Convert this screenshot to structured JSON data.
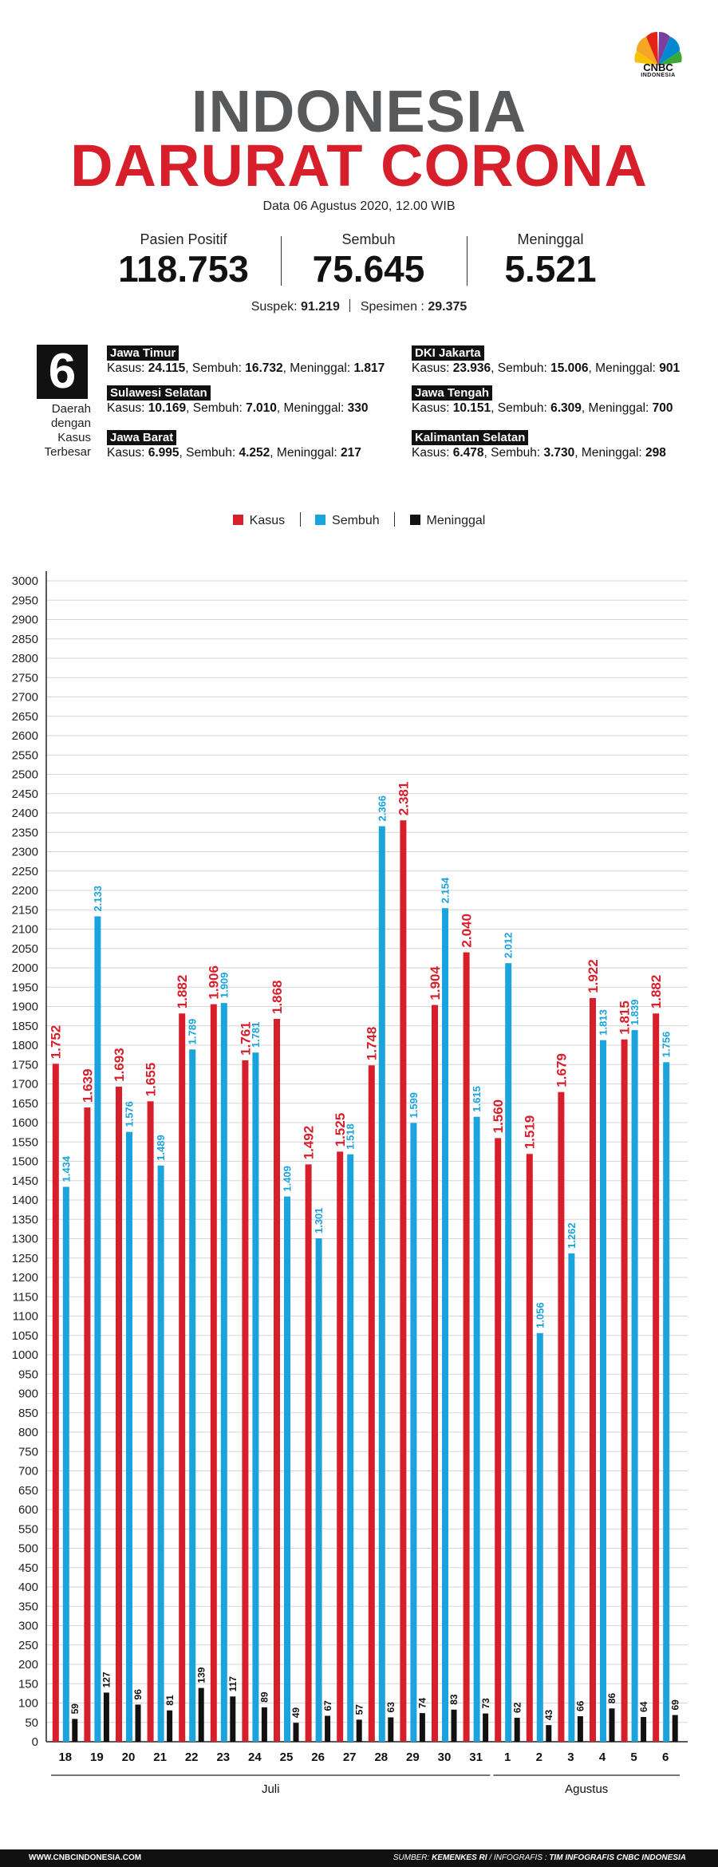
{
  "brand": {
    "name": "CNBC",
    "sub": "INDONESIA"
  },
  "title": {
    "line1": "INDONESIA",
    "line2": "DARURAT CORONA"
  },
  "date": "Data 06 Agustus 2020, 12.00 WIB",
  "stats": [
    {
      "label": "Pasien Positif",
      "value": "118.753"
    },
    {
      "label": "Sembuh",
      "value": "75.645"
    },
    {
      "label": "Meninggal",
      "value": "5.521"
    }
  ],
  "suspek": {
    "label": "Suspek:",
    "value": "91.219",
    "label2": "Spesimen :",
    "value2": "29.375"
  },
  "regions_header": {
    "number": "6",
    "caption": [
      "Daerah",
      "dengan",
      "Kasus",
      "Terbesar"
    ]
  },
  "regions": [
    {
      "name": "Jawa Timur",
      "kasus": "24.115",
      "sembuh": "16.732",
      "meninggal": "1.817"
    },
    {
      "name": "Sulawesi Selatan",
      "kasus": "10.169",
      "sembuh": "7.010",
      "meninggal": "330"
    },
    {
      "name": "Jawa Barat",
      "kasus": "6.995",
      "sembuh": "4.252",
      "meninggal": "217"
    },
    {
      "name": "DKI Jakarta",
      "kasus": "23.936",
      "sembuh": "15.006",
      "meninggal": "901"
    },
    {
      "name": "Jawa Tengah",
      "kasus": "10.151",
      "sembuh": "6.309",
      "meninggal": "700"
    },
    {
      "name": "Kalimantan Selatan",
      "kasus": "6.478",
      "sembuh": "3.730",
      "meninggal": "298"
    }
  ],
  "labels": {
    "kasus": "Kasus:",
    "sembuh": "Sembuh:",
    "meninggal": "Meninggal:"
  },
  "colors": {
    "kasus": "#d71f2b",
    "sembuh": "#1aa3dc",
    "meninggal": "#111111",
    "title_gray": "#58595b"
  },
  "chart_data": {
    "type": "bar",
    "categories": [
      "18",
      "19",
      "20",
      "21",
      "22",
      "23",
      "24",
      "25",
      "26",
      "27",
      "28",
      "29",
      "30",
      "31",
      "1",
      "2",
      "3",
      "4",
      "5",
      "6"
    ],
    "groups": [
      {
        "label": "Juli",
        "from": 0,
        "to": 13
      },
      {
        "label": "Agustus",
        "from": 14,
        "to": 19
      }
    ],
    "series": [
      {
        "name": "Kasus",
        "values": [
          1752,
          1639,
          1693,
          1655,
          1882,
          1906,
          1761,
          1868,
          1492,
          1525,
          1748,
          2381,
          1904,
          2040,
          1560,
          1519,
          1679,
          1922,
          1815,
          1882
        ],
        "labels": [
          "1.752",
          "1.639",
          "1.693",
          "1.655",
          "1.882",
          "1.906",
          "1.761",
          "1.868",
          "1.492",
          "1.525",
          "1.748",
          "2.381",
          "1.904",
          "2.040",
          "1.560",
          "1.519",
          "1.679",
          "1.922",
          "1.815",
          "1.882"
        ]
      },
      {
        "name": "Sembuh",
        "values": [
          1434,
          2133,
          1576,
          1489,
          1789,
          1909,
          1781,
          1409,
          1301,
          1518,
          2366,
          1599,
          2154,
          1615,
          2012,
          1056,
          1262,
          1813,
          1839,
          1756
        ],
        "labels": [
          "1.434",
          "2.133",
          "1.576",
          "1.489",
          "1.789",
          "1.909",
          "1.781",
          "1.409",
          "1.301",
          "1.518",
          "2.366",
          "1.599",
          "2.154",
          "1.615",
          "2.012",
          "1.056",
          "1.262",
          "1.813",
          "1.839",
          "1.756"
        ]
      },
      {
        "name": "Meninggal",
        "values": [
          59,
          127,
          96,
          81,
          139,
          117,
          89,
          49,
          67,
          57,
          63,
          74,
          83,
          73,
          62,
          43,
          66,
          86,
          64,
          69
        ],
        "labels": [
          "59",
          "127",
          "96",
          "81",
          "139",
          "117",
          "89",
          "49",
          "67",
          "57",
          "63",
          "74",
          "83",
          "73",
          "62",
          "43",
          "66",
          "86",
          "64",
          "69"
        ]
      }
    ],
    "ylim": [
      0,
      3000
    ],
    "yticks": [
      0,
      50,
      100,
      150,
      200,
      250,
      300,
      350,
      400,
      450,
      500,
      550,
      600,
      650,
      700,
      750,
      800,
      850,
      900,
      950,
      1000,
      1050,
      1100,
      1150,
      1200,
      1250,
      1300,
      1350,
      1400,
      1450,
      1500,
      1550,
      1600,
      1650,
      1700,
      1750,
      1800,
      1850,
      1900,
      1950,
      2000,
      2050,
      2100,
      2150,
      2200,
      2250,
      2300,
      2350,
      2400,
      2450,
      2500,
      2550,
      2600,
      2650,
      2700,
      2750,
      2800,
      2850,
      2900,
      2950,
      3000
    ],
    "legend": [
      "Kasus",
      "Sembuh",
      "Meninggal"
    ],
    "grid": true
  },
  "footer": {
    "site": "WWW.CNBCINDONESIA.COM",
    "source_label": "SUMBER:",
    "source": "KEMENKES RI",
    "infografis_label": "/ INFOGRAFIS :",
    "infografis": "TIM INFOGRAFIS CNBC INDONESIA"
  }
}
